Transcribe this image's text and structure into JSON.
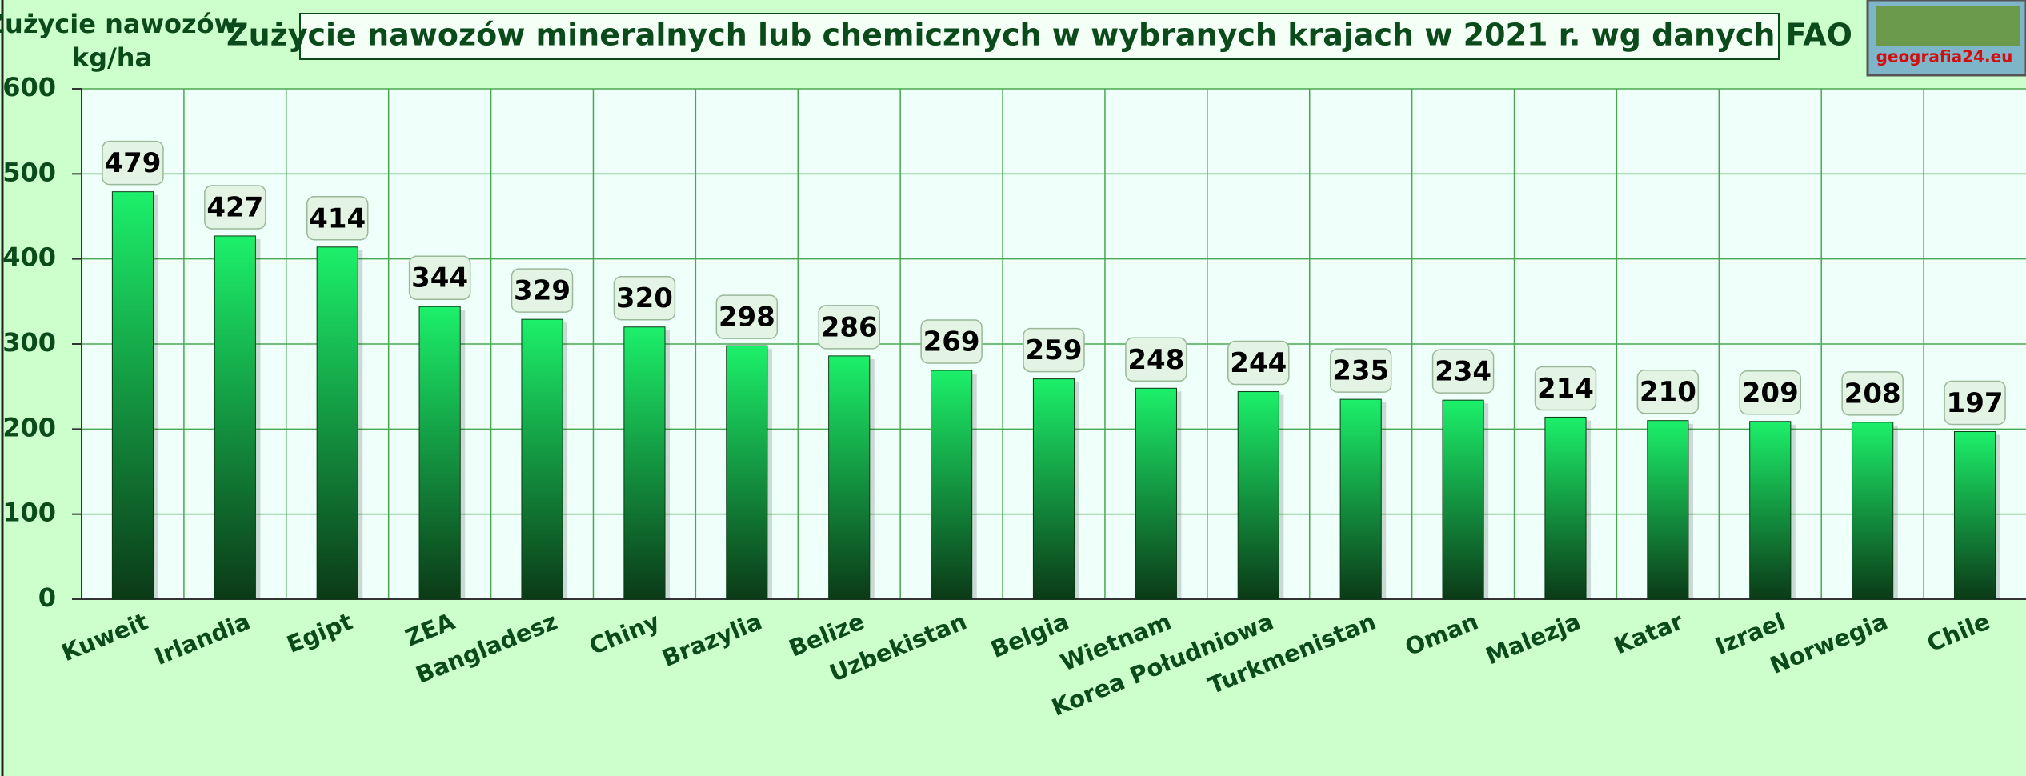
{
  "chart_data": {
    "type": "bar",
    "title": "Zużycie nawozów mineralnych lub chemicznych w wybranych krajach w 2021 r. wg danych FAO",
    "y_label_lines": [
      "Zużycie nawozów",
      "kg/ha"
    ],
    "logo_text": "geografia24.eu",
    "categories": [
      "Kuweit",
      "Irlandia",
      "Egipt",
      "ZEA",
      "Bangladesz",
      "Chiny",
      "Brazylia",
      "Belize",
      "Uzbekistan",
      "Belgia",
      "Wietnam",
      "Korea Południowa",
      "Turkmenistan",
      "Oman",
      "Malezja",
      "Katar",
      "Izrael",
      "Norwegia",
      "Chile"
    ],
    "values": [
      479,
      427,
      414,
      344,
      329,
      320,
      298,
      286,
      269,
      259,
      248,
      244,
      235,
      234,
      214,
      210,
      209,
      208,
      197
    ],
    "color_top": "#1cf06a",
    "color_bottom": "#0b3a17",
    "ylim": [
      0,
      600
    ],
    "yticks": [
      0,
      100,
      200,
      300,
      400,
      500,
      600
    ],
    "grid": true
  }
}
